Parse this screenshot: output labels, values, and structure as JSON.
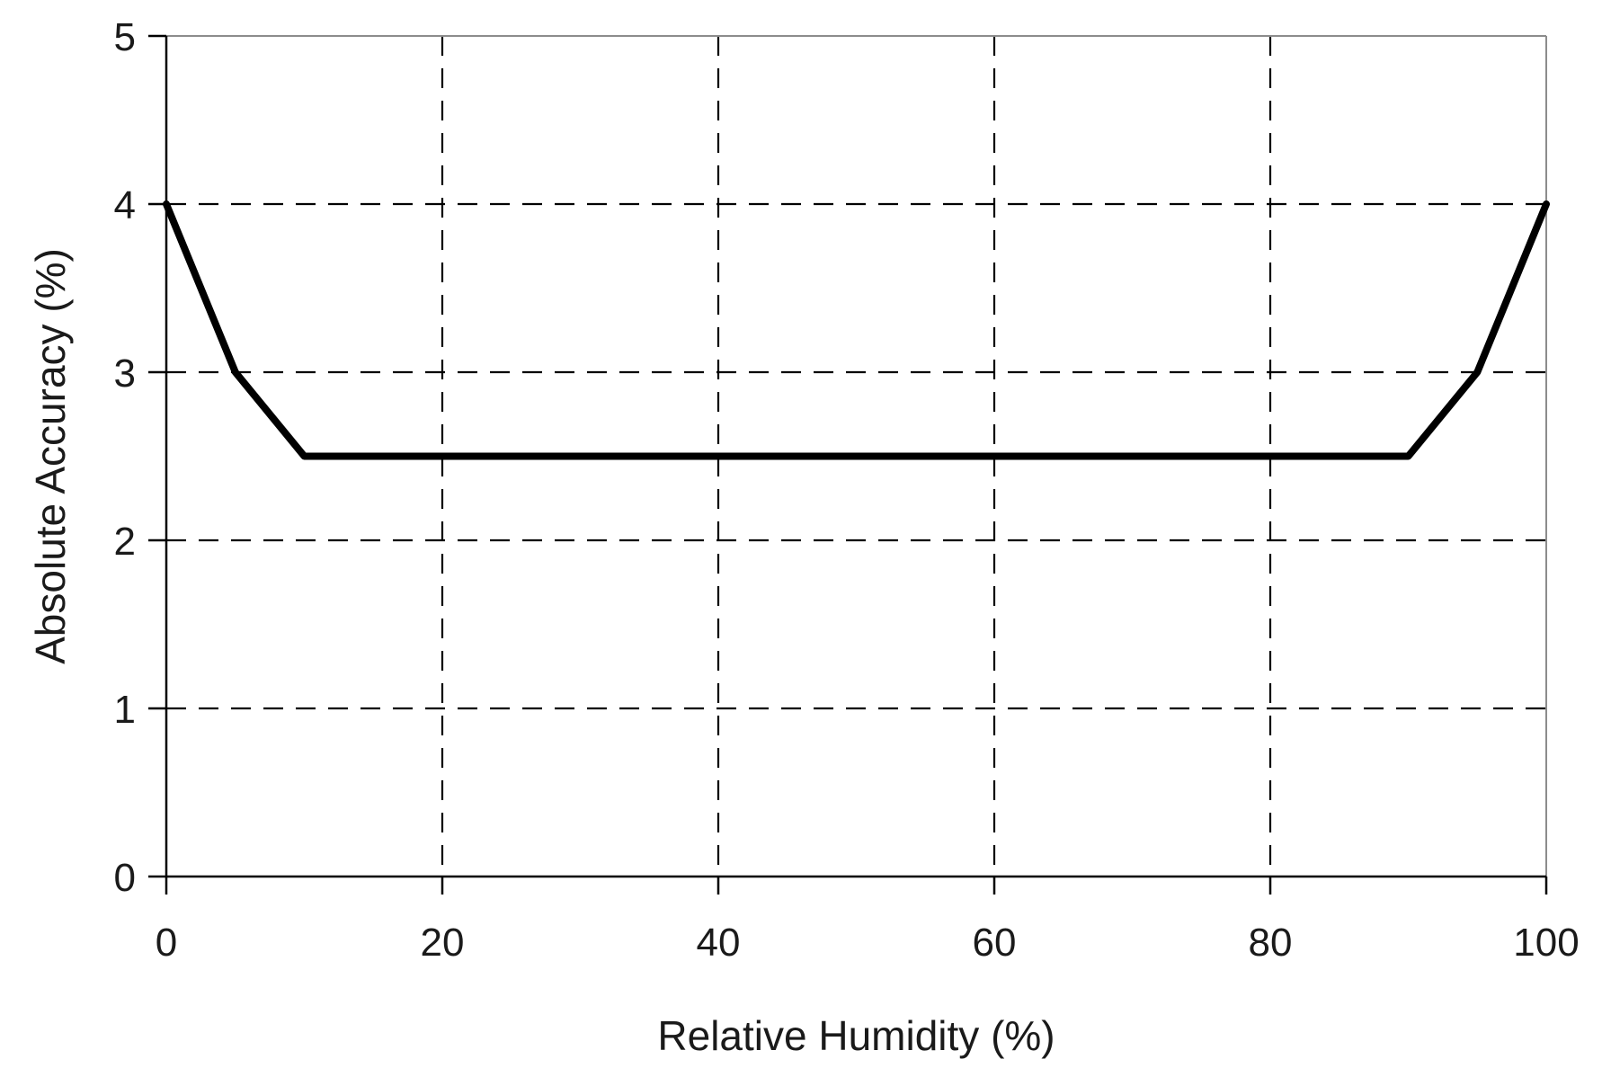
{
  "chart_data": {
    "type": "line",
    "title": "",
    "xlabel": "Relative Humidity (%)",
    "ylabel": "Absolute Accuracy (%)",
    "xlim": [
      0,
      100
    ],
    "ylim": [
      0,
      5
    ],
    "x_ticks": [
      0,
      20,
      40,
      60,
      80,
      100
    ],
    "x_tick_labels": [
      "0",
      "20",
      "40",
      "60",
      "80",
      "100"
    ],
    "y_ticks": [
      0,
      1,
      2,
      3,
      4,
      5
    ],
    "y_tick_labels": [
      "0",
      "1",
      "2",
      "3",
      "4",
      "5"
    ],
    "grid": true,
    "grid_style": "dashed",
    "legend": "none",
    "series": [
      {
        "x": [
          0,
          5,
          10,
          90,
          95,
          100
        ],
        "y": [
          4,
          3,
          2.5,
          2.5,
          3,
          4
        ],
        "color": "#000000"
      }
    ]
  }
}
